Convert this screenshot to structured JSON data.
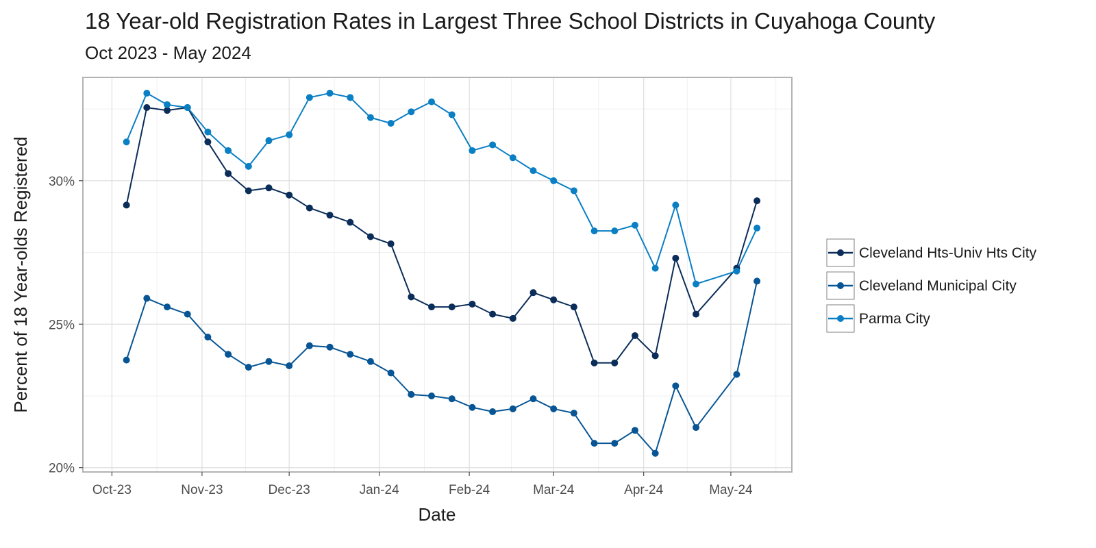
{
  "chart_data": {
    "type": "line",
    "title": "18 Year-old Registration Rates in Largest Three School Districts in Cuyahoga County",
    "subtitle": "Oct 2023 - May 2024",
    "xlabel": "Date",
    "ylabel": "Percent of 18 Year-olds Registered",
    "xlim": [
      "2023-09-21",
      "2024-05-22"
    ],
    "ylim": [
      19.85,
      33.6
    ],
    "x_ticks": [
      {
        "date": "2023-10-01",
        "label": "Oct-23"
      },
      {
        "date": "2023-11-01",
        "label": "Nov-23"
      },
      {
        "date": "2023-12-01",
        "label": "Dec-23"
      },
      {
        "date": "2024-01-01",
        "label": "Jan-24"
      },
      {
        "date": "2024-02-01",
        "label": "Feb-24"
      },
      {
        "date": "2024-03-01",
        "label": "Mar-24"
      },
      {
        "date": "2024-04-01",
        "label": "Apr-24"
      },
      {
        "date": "2024-05-01",
        "label": "May-24"
      }
    ],
    "y_ticks": [
      {
        "value": 20,
        "label": "20%"
      },
      {
        "value": 25,
        "label": "25%"
      },
      {
        "value": 30,
        "label": "30%"
      }
    ],
    "grid": true,
    "legend_position": "right",
    "x": [
      "2023-10-06",
      "2023-10-13",
      "2023-10-20",
      "2023-10-27",
      "2023-11-03",
      "2023-11-10",
      "2023-11-17",
      "2023-11-24",
      "2023-12-01",
      "2023-12-08",
      "2023-12-15",
      "2023-12-22",
      "2023-12-29",
      "2024-01-05",
      "2024-01-12",
      "2024-01-19",
      "2024-01-26",
      "2024-02-02",
      "2024-02-09",
      "2024-02-16",
      "2024-02-23",
      "2024-03-01",
      "2024-03-08",
      "2024-03-15",
      "2024-03-22",
      "2024-03-29",
      "2024-04-05",
      "2024-04-12",
      "2024-04-19",
      "2024-05-03",
      "2024-05-10"
    ],
    "series": [
      {
        "name": "Cleveland Hts-Univ Hts City",
        "color": "#0b2d59",
        "values": [
          29.15,
          32.55,
          32.45,
          32.55,
          31.35,
          30.25,
          29.65,
          29.75,
          29.5,
          29.05,
          28.8,
          28.55,
          28.05,
          27.8,
          25.95,
          25.6,
          25.6,
          25.7,
          25.35,
          25.2,
          26.1,
          25.85,
          25.6,
          23.65,
          23.65,
          24.6,
          23.9,
          27.3,
          25.35,
          26.95,
          29.3
        ]
      },
      {
        "name": "Cleveland Municipal City",
        "color": "#075594",
        "values": [
          23.75,
          25.9,
          25.6,
          25.35,
          24.55,
          23.95,
          23.5,
          23.7,
          23.55,
          24.25,
          24.2,
          23.95,
          23.7,
          23.3,
          22.55,
          22.5,
          22.4,
          22.1,
          21.95,
          22.05,
          22.4,
          22.05,
          21.9,
          20.85,
          20.85,
          21.3,
          20.5,
          22.85,
          21.4,
          23.25,
          26.5
        ]
      },
      {
        "name": "Parma City",
        "color": "#0a7fc4",
        "values": [
          31.35,
          33.05,
          32.65,
          32.55,
          31.7,
          31.05,
          30.5,
          31.4,
          31.6,
          32.9,
          33.05,
          32.9,
          32.2,
          32.0,
          32.4,
          32.75,
          32.3,
          31.05,
          31.25,
          30.8,
          30.35,
          30.0,
          29.65,
          28.25,
          28.25,
          28.45,
          26.95,
          29.15,
          26.4,
          26.85,
          28.35
        ]
      }
    ]
  }
}
